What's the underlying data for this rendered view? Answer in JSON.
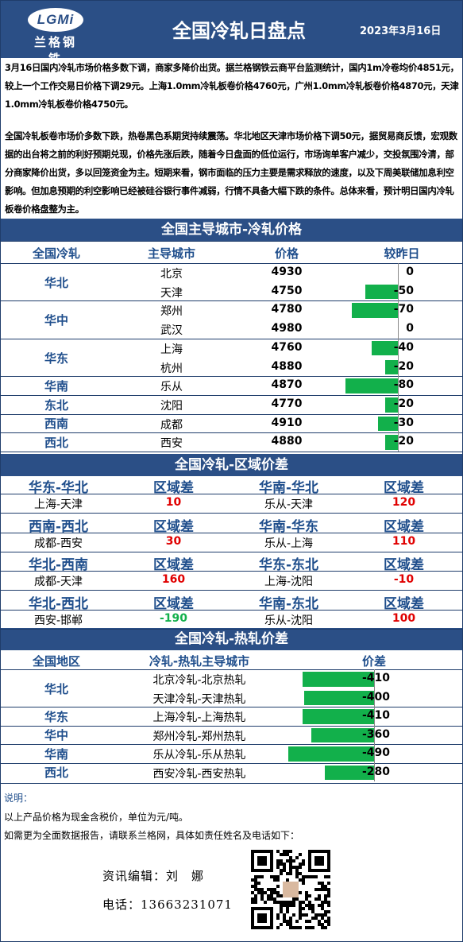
{
  "header": {
    "logo_text": "LGMi",
    "logo_cn": "兰格钢铁",
    "title": "全国冷轧日盘点",
    "date": "2023年3月16日"
  },
  "summary": {
    "para1": "3月16日国内冷轧市场价格多数下调，商家多降价出货。据兰格钢铁云商平台监测统计，国内1m冷卷均价4851元，较上一个工作交易日价格下调29元。上海1.0mm冷轧板卷价格4760元，广州1.0mm冷轧板卷价格4870元，天津1.0mm冷轧板卷价格4750元。",
    "para2": "全国冷轧板卷市场价多数下跌，热卷黑色系期货持续震荡。华北地区天津市场价格下调50元，据贸易商反馈，宏观数据的出台将之前的利好预期兑现，价格先涨后跌，随着今日盘面的低位运行，市场询单客户减少，交投氛围冷清，部分商家降价出货，多以回笼资金为主。短期来看，钢市面临的压力主要是需求释放的速度，以及下周美联储加息利空影响。但加息预期的利空影响已经被硅谷银行事件减弱，行情不具备大幅下跌的条件。总体来看，预计明日国内冷轧板卷价格盘整为主。"
  },
  "section1": {
    "title": "全国主导城市-冷轧价格",
    "headers": [
      "全国冷轧",
      "主导城市",
      "价格",
      "较昨日"
    ],
    "regions": [
      "华北",
      "华中",
      "华东",
      "华南",
      "东北",
      "西南",
      "西北"
    ],
    "rows": [
      {
        "city": "北京",
        "price": "4930",
        "change": "0",
        "value": 0
      },
      {
        "city": "天津",
        "price": "4750",
        "change": "-50",
        "value": -50
      },
      {
        "city": "郑州",
        "price": "4780",
        "change": "-70",
        "value": -70
      },
      {
        "city": "武汉",
        "price": "4980",
        "change": "0",
        "value": 0
      },
      {
        "city": "上海",
        "price": "4760",
        "change": "-40",
        "value": -40
      },
      {
        "city": "杭州",
        "price": "4880",
        "change": "-20",
        "value": -20
      },
      {
        "city": "乐从",
        "price": "4870",
        "change": "-80",
        "value": -80
      },
      {
        "city": "沈阳",
        "price": "4770",
        "change": "-20",
        "value": -20
      },
      {
        "city": "成都",
        "price": "4910",
        "change": "-30",
        "value": -30
      },
      {
        "city": "西安",
        "price": "4880",
        "change": "-20",
        "value": -20
      }
    ]
  },
  "section2": {
    "title": "全国冷轧-区域价差",
    "diff_label": "区域差",
    "pairs": [
      {
        "left_region": "华东-华北",
        "left_cities": "上海-天津",
        "left_value": "10",
        "left_color": "#e00000",
        "right_region": "华南-华北",
        "right_cities": "乐从-天津",
        "right_value": "120",
        "right_color": "#e00000"
      },
      {
        "left_region": "西南-西北",
        "left_cities": "成都-西安",
        "left_value": "30",
        "left_color": "#e00000",
        "right_region": "华南-华东",
        "right_cities": "乐从-上海",
        "right_value": "110",
        "right_color": "#e00000"
      },
      {
        "left_region": "华北-西南",
        "left_cities": "成都-天津",
        "left_value": "160",
        "left_color": "#e00000",
        "right_region": "华东-东北",
        "right_cities": "上海-沈阳",
        "right_value": "-10",
        "right_color": "#e00000"
      },
      {
        "left_region": "华北-西北",
        "left_cities": "西安-邯郸",
        "left_value": "-190",
        "left_color": "#12b04b",
        "right_region": "华南-东北",
        "right_cities": "乐从-沈阳",
        "right_value": "100",
        "right_color": "#e00000"
      }
    ]
  },
  "section3": {
    "title": "全国冷轧-热轧价差",
    "headers": [
      "全国地区",
      "冷轧-热轧主导城市",
      "价差"
    ],
    "regions": [
      "华北",
      "华东",
      "华中",
      "华南",
      "西北"
    ],
    "rows": [
      {
        "pair": "北京冷轧-北京热轧",
        "diff": "-410",
        "value": -410
      },
      {
        "pair": "天津冷轧-天津热轧",
        "diff": "-400",
        "value": -400
      },
      {
        "pair": "上海冷轧-上海热轧",
        "diff": "-410",
        "value": -410
      },
      {
        "pair": "郑州冷轧-郑州热轧",
        "diff": "-360",
        "value": -360
      },
      {
        "pair": "乐从冷轧-乐从热轧",
        "diff": "-490",
        "value": -490
      },
      {
        "pair": "西安冷轧-西安热轧",
        "diff": "-280",
        "value": -280
      }
    ]
  },
  "notes": {
    "label": "说明：",
    "line1": "以上产品价格为现金含税价，单位为元/吨。",
    "line2": "如需更为全面数据报告，请联系兰格网，具体如责任姓名及电话如下：",
    "editor": "资讯编辑：刘　娜",
    "phone": "电话：13663231071"
  },
  "colors": {
    "header": "#2b4f86",
    "region_text": "#1f4e8c",
    "bar": "#12b04b",
    "negative_red": "#e00000"
  }
}
